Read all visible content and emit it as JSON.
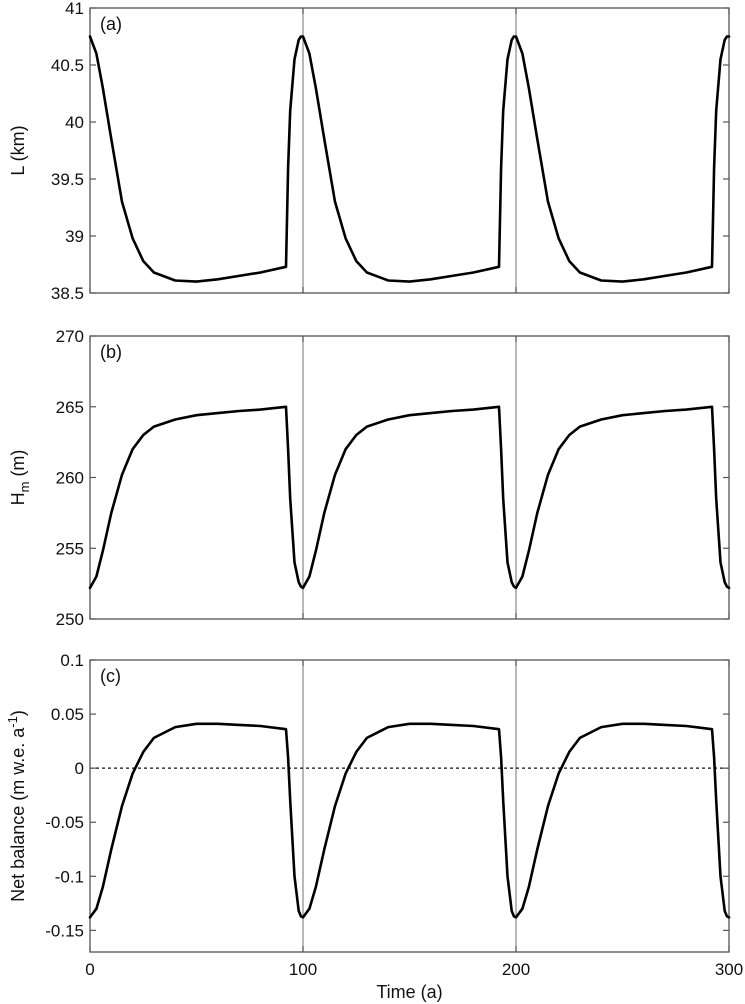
{
  "chart_data": [
    {
      "type": "line",
      "panel_label": "(a)",
      "ylabel": {
        "main": "L (km)",
        "sub": "",
        "rest": "",
        "sup": "",
        "tail": ""
      },
      "xlim": [
        0,
        300
      ],
      "ylim": [
        38.5,
        41
      ],
      "yticks": [
        "41",
        "40.5",
        "40",
        "39.5",
        "39",
        "38.5"
      ],
      "ytick_values": [
        41,
        40.5,
        40,
        39.5,
        39,
        38.5
      ],
      "grid": false,
      "vlines": [
        100,
        200
      ],
      "x": [
        0,
        3,
        6,
        10,
        15,
        20,
        25,
        30,
        40,
        50,
        60,
        70,
        80,
        92,
        93,
        94,
        96,
        98,
        99,
        100,
        103,
        106,
        110,
        115,
        120,
        125,
        130,
        140,
        150,
        160,
        170,
        180,
        192,
        193,
        194,
        196,
        198,
        199,
        200,
        203,
        206,
        210,
        215,
        220,
        225,
        230,
        240,
        250,
        260,
        270,
        280,
        292,
        293,
        294,
        296,
        298,
        299,
        300
      ],
      "values": [
        40.75,
        40.6,
        40.3,
        39.85,
        39.3,
        38.98,
        38.78,
        38.68,
        38.61,
        38.6,
        38.62,
        38.65,
        38.68,
        38.73,
        39.6,
        40.1,
        40.55,
        40.72,
        40.75,
        40.75,
        40.6,
        40.3,
        39.85,
        39.3,
        38.98,
        38.78,
        38.68,
        38.61,
        38.6,
        38.62,
        38.65,
        38.68,
        38.73,
        39.6,
        40.1,
        40.55,
        40.72,
        40.75,
        40.75,
        40.6,
        40.3,
        39.85,
        39.3,
        38.98,
        38.78,
        38.68,
        38.61,
        38.6,
        38.62,
        38.65,
        38.68,
        38.73,
        39.6,
        40.1,
        40.55,
        40.72,
        40.75,
        40.75
      ]
    },
    {
      "type": "line",
      "panel_label": "(b)",
      "ylabel": {
        "main": "H",
        "sub": "m",
        "rest": " (m)",
        "sup": "",
        "tail": ""
      },
      "xlim": [
        0,
        300
      ],
      "ylim": [
        250,
        270
      ],
      "yticks": [
        "270",
        "265",
        "260",
        "255",
        "250"
      ],
      "ytick_values": [
        270,
        265,
        260,
        255,
        250
      ],
      "grid": false,
      "vlines": [
        100,
        200
      ],
      "x": [
        0,
        3,
        6,
        10,
        15,
        20,
        25,
        30,
        40,
        50,
        60,
        70,
        80,
        92,
        93,
        94,
        96,
        98,
        99,
        100,
        103,
        106,
        110,
        115,
        120,
        125,
        130,
        140,
        150,
        160,
        170,
        180,
        192,
        193,
        194,
        196,
        198,
        199,
        200,
        203,
        206,
        210,
        215,
        220,
        225,
        230,
        240,
        250,
        260,
        270,
        280,
        292,
        293,
        294,
        296,
        298,
        299,
        300
      ],
      "values": [
        252.2,
        253,
        254.8,
        257.5,
        260.2,
        262,
        263,
        263.6,
        264.1,
        264.4,
        264.55,
        264.7,
        264.8,
        265,
        262,
        258.5,
        254,
        252.6,
        252.3,
        252.2,
        253,
        254.8,
        257.5,
        260.2,
        262,
        263,
        263.6,
        264.1,
        264.4,
        264.55,
        264.7,
        264.8,
        265,
        262,
        258.5,
        254,
        252.6,
        252.3,
        252.2,
        253,
        254.8,
        257.5,
        260.2,
        262,
        263,
        263.6,
        264.1,
        264.4,
        264.55,
        264.7,
        264.8,
        265,
        262,
        258.5,
        254,
        252.6,
        252.3,
        252.2
      ]
    },
    {
      "type": "line",
      "panel_label": "(c)",
      "ylabel": {
        "main": "Net balance (m w.e. a",
        "sub": "",
        "rest": "",
        "sup": "-1",
        "tail": ")"
      },
      "xlabel": "Time (a)",
      "xticks": [
        "0",
        "100",
        "200",
        "300"
      ],
      "xtick_values": [
        0,
        100,
        200,
        300
      ],
      "xlim": [
        0,
        300
      ],
      "ylim": [
        -0.17,
        0.1
      ],
      "yticks": [
        "0.1",
        "0.05",
        "0",
        "-0.05",
        "-0.1",
        "-0.15"
      ],
      "ytick_values": [
        0.1,
        0.05,
        0,
        -0.05,
        -0.1,
        -0.15
      ],
      "grid": false,
      "vlines": [
        100,
        200
      ],
      "hline_dotted": 0,
      "x": [
        0,
        3,
        6,
        10,
        15,
        20,
        25,
        30,
        40,
        50,
        60,
        70,
        80,
        92,
        93,
        94,
        96,
        98,
        99,
        100,
        103,
        106,
        110,
        115,
        120,
        125,
        130,
        140,
        150,
        160,
        170,
        180,
        192,
        193,
        194,
        196,
        198,
        199,
        200,
        203,
        206,
        210,
        215,
        220,
        225,
        230,
        240,
        250,
        260,
        270,
        280,
        292,
        293,
        294,
        296,
        298,
        299,
        300
      ],
      "values": [
        -0.138,
        -0.13,
        -0.11,
        -0.075,
        -0.035,
        -0.005,
        0.015,
        0.028,
        0.038,
        0.041,
        0.041,
        0.04,
        0.039,
        0.036,
        0.01,
        -0.03,
        -0.1,
        -0.132,
        -0.137,
        -0.138,
        -0.13,
        -0.11,
        -0.075,
        -0.035,
        -0.005,
        0.015,
        0.028,
        0.038,
        0.041,
        0.041,
        0.04,
        0.039,
        0.036,
        0.01,
        -0.03,
        -0.1,
        -0.132,
        -0.137,
        -0.138,
        -0.13,
        -0.11,
        -0.075,
        -0.035,
        -0.005,
        0.015,
        0.028,
        0.038,
        0.041,
        0.041,
        0.04,
        0.039,
        0.036,
        0.01,
        -0.03,
        -0.1,
        -0.132,
        -0.137,
        -0.138
      ]
    }
  ]
}
